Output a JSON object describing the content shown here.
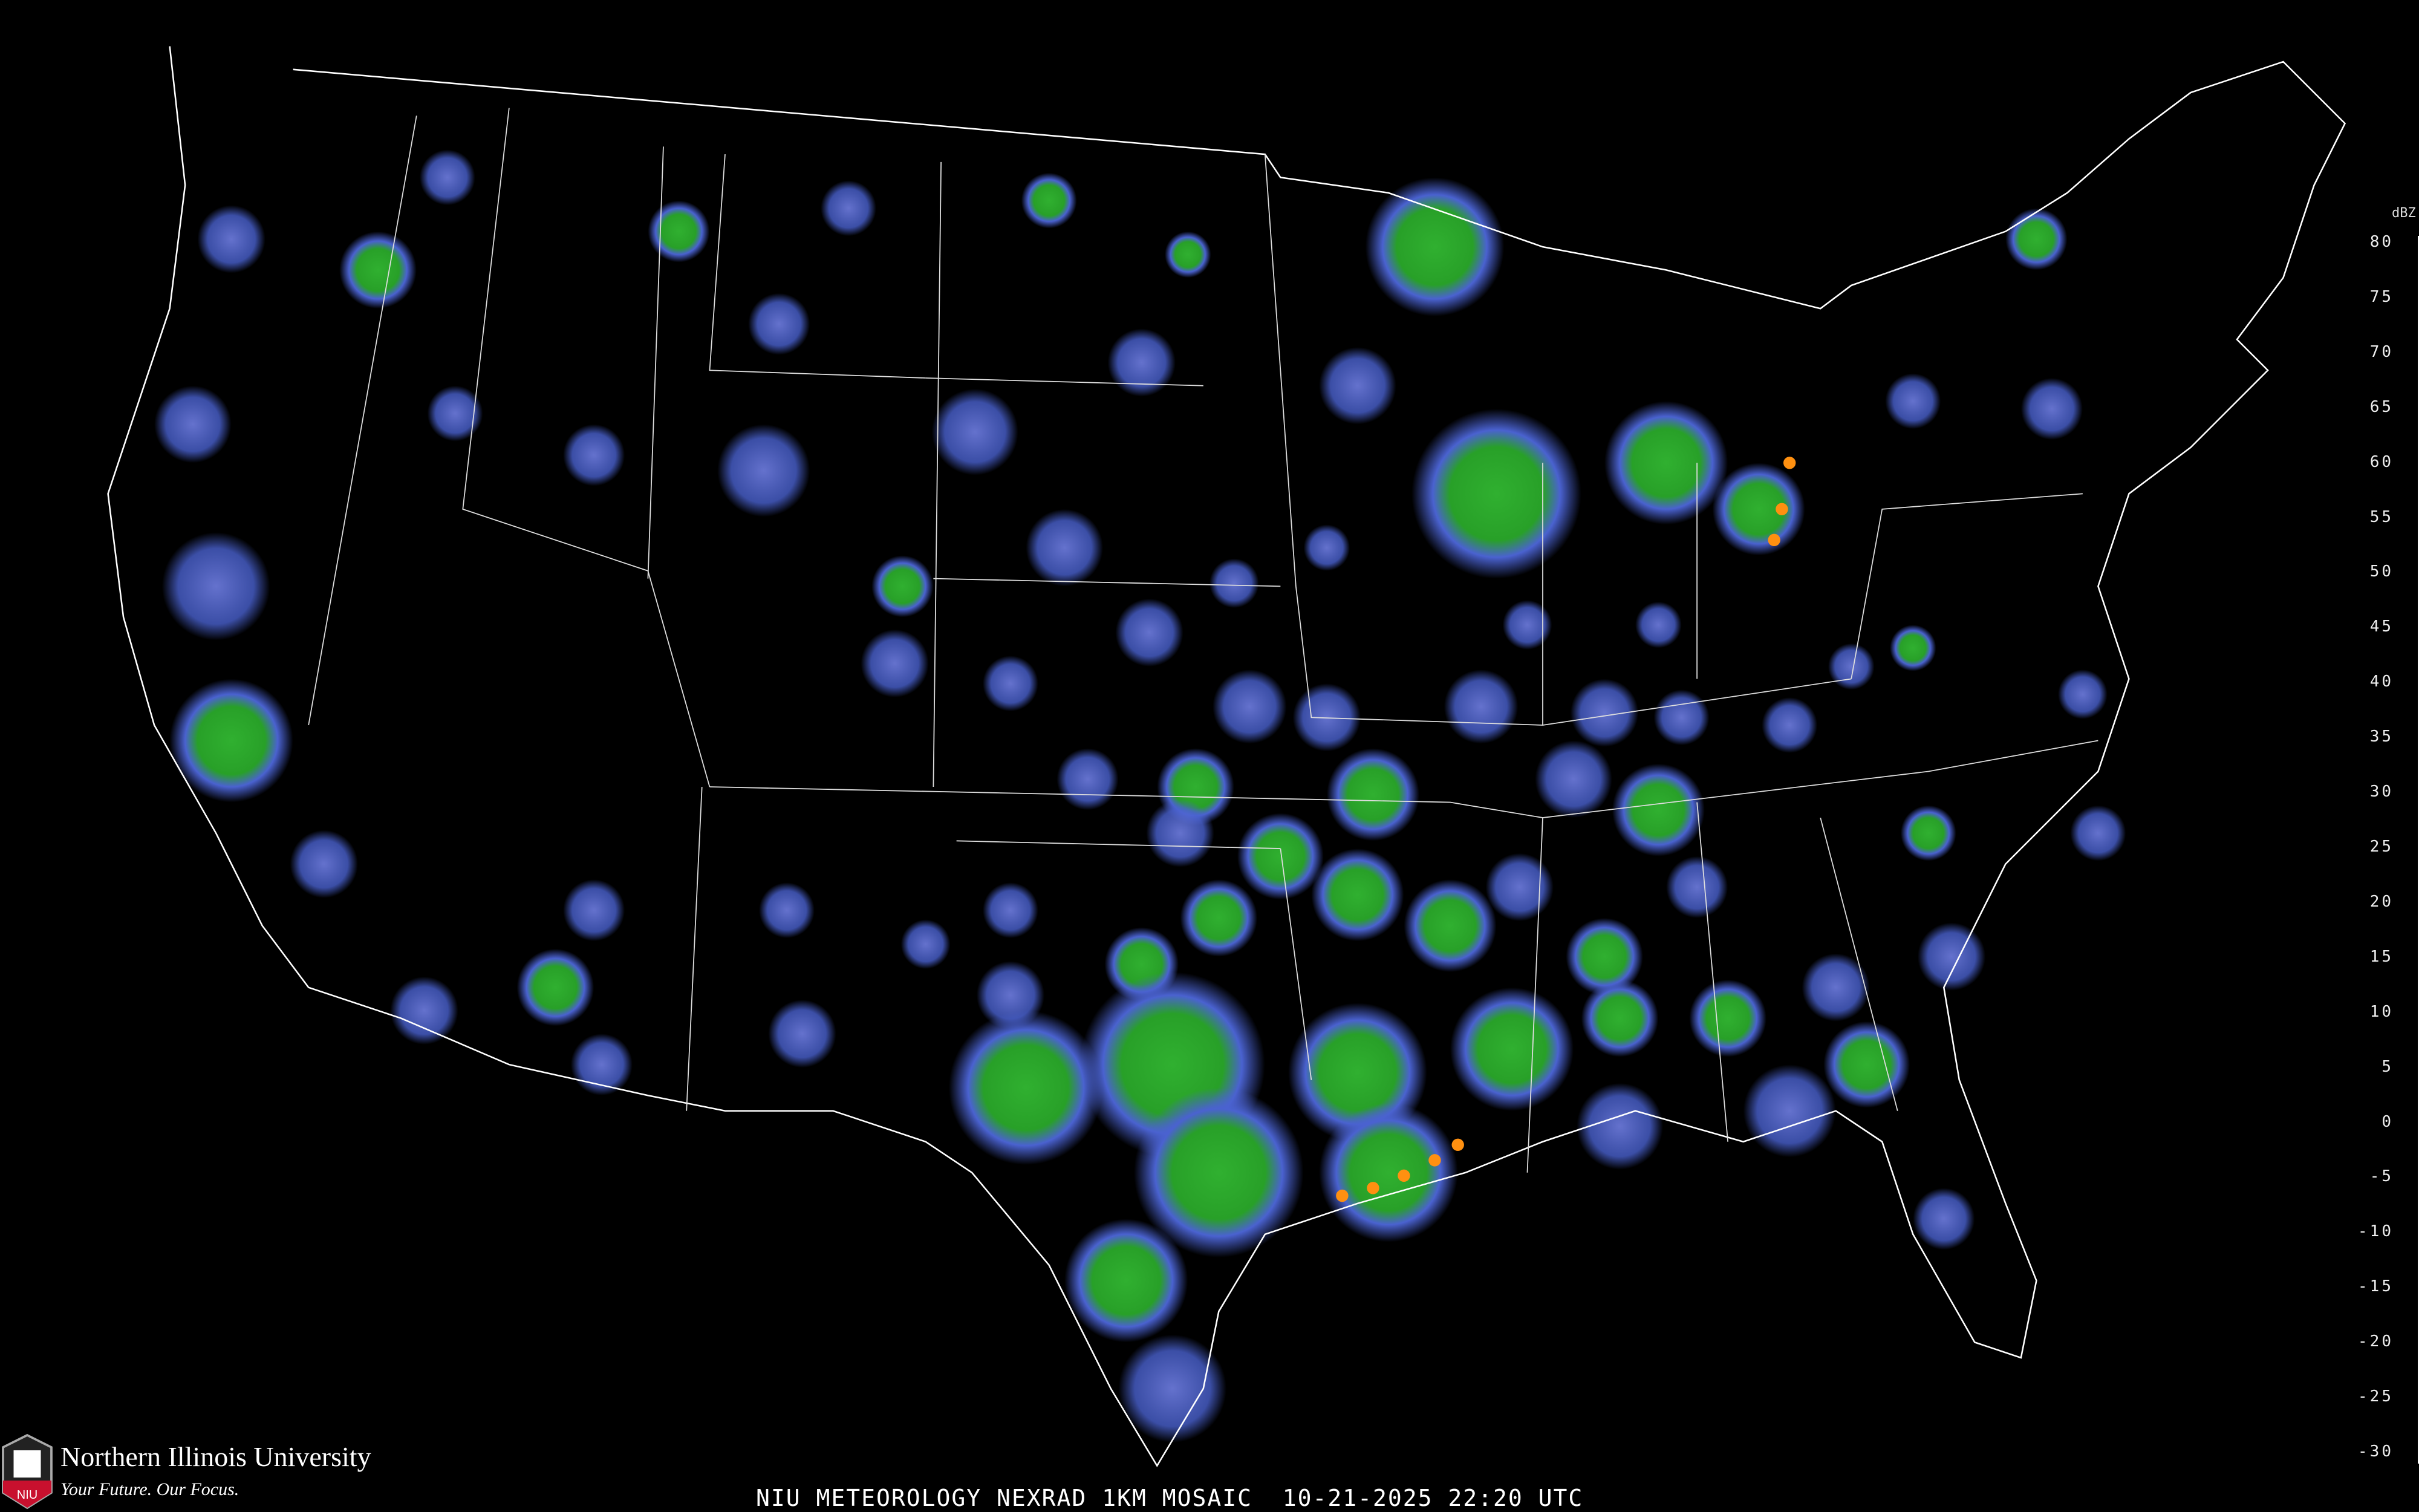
{
  "title": "NIU METEOROLOGY NEXRAD 1KM MOSAIC  10-21-2025 22:20 UTC",
  "logo": {
    "name": "Northern Illinois University",
    "tagline": "Your Future. Our Focus.",
    "badge": "NIU",
    "badge_color": "#c8102e"
  },
  "legend": {
    "unit": "dBZ",
    "ticks": [
      "80",
      "75",
      "70",
      "65",
      "60",
      "55",
      "50",
      "45",
      "40",
      "35",
      "30",
      "25",
      "20",
      "15",
      "10",
      "5",
      "0",
      "-5",
      "-10",
      "-15",
      "-20",
      "-25",
      "-30"
    ],
    "colors": [
      "#ffffff",
      "#00e0e8",
      "#6ab8f0",
      "#a0a0f0",
      "#ff80f0",
      "#f060e8",
      "#e840d8",
      "#e000c8",
      "#c80000",
      "#e00000",
      "#ff0000",
      "#ff2000",
      "#ff4000",
      "#ff6000",
      "#ff7a10",
      "#ff9010",
      "#ffa818",
      "#ffc020",
      "#ffe020",
      "#ffff20",
      "#40f040",
      "#38d838",
      "#30c030",
      "#28a828",
      "#209020",
      "#107a20",
      "#006820",
      "#4870e0",
      "#4060c8",
      "#3850b0",
      "#303898",
      "#283080",
      "#606080",
      "#505068",
      "#404050",
      "#303038",
      "#202028",
      "#101018"
    ],
    "color_stops_dbz": [
      80,
      79,
      77,
      76,
      75,
      73,
      70,
      67,
      65,
      62,
      60,
      57,
      55,
      52,
      50,
      47,
      45,
      42,
      40,
      37,
      30,
      28,
      26,
      24,
      22,
      16,
      12,
      10,
      5,
      2,
      -2,
      -5,
      -6,
      -10,
      -15,
      -20,
      -25,
      -30
    ]
  },
  "map": {
    "background": "#000000",
    "boundary_color": "#ffffff",
    "county_color": "#555555",
    "highway_color": "#8a4a2a"
  }
}
